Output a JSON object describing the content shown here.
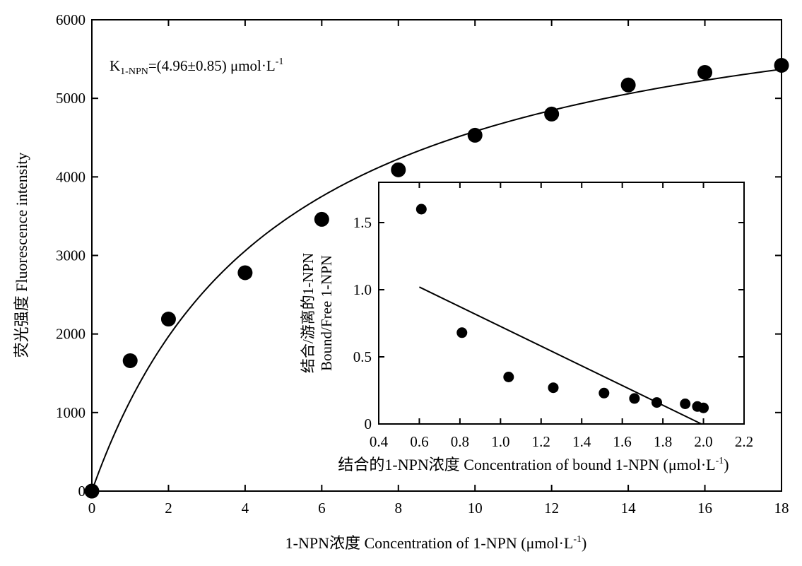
{
  "chart_data": [
    {
      "type": "scatter",
      "xlabel": "1-NPN浓度 Concentration of 1-NPN (μmol·L",
      "xlabel_sup": "-1",
      "xlabel_end": ")",
      "ylabel": "荧光强度 Fluorescence intensity",
      "xlim": [
        0,
        18
      ],
      "ylim": [
        0,
        6000
      ],
      "xticks": [
        0,
        2,
        4,
        6,
        8,
        10,
        12,
        14,
        16,
        18
      ],
      "yticks": [
        0,
        1000,
        2000,
        3000,
        4000,
        5000,
        6000
      ],
      "annotation": {
        "k_main": "K",
        "k_sub": "1-NPN",
        "k_value": "=(4.96±0.85) μmol·L",
        "k_sup": "-1"
      },
      "points": [
        {
          "x": 0,
          "y": 0
        },
        {
          "x": 1,
          "y": 1660
        },
        {
          "x": 2,
          "y": 2190
        },
        {
          "x": 4,
          "y": 2780
        },
        {
          "x": 6,
          "y": 3460
        },
        {
          "x": 8,
          "y": 4090
        },
        {
          "x": 10,
          "y": 4530
        },
        {
          "x": 12,
          "y": 4800
        },
        {
          "x": 14,
          "y": 5170
        },
        {
          "x": 16,
          "y": 5330
        },
        {
          "x": 18,
          "y": 5420
        }
      ],
      "fit_curve": {
        "model": "Bmax*x/(Kd+x)",
        "Bmax": 6850,
        "Kd": 4.96
      }
    },
    {
      "type": "scatter",
      "xlabel": "结合的1-NPN浓度 Concentration of bound 1-NPN (μmol·L",
      "xlabel_sup": "-1",
      "xlabel_end": ")",
      "ylabel_line1": "结合/游离的1-NPN",
      "ylabel_line2": "Bound/Free 1-NPN",
      "xlim": [
        0.4,
        2.2
      ],
      "ylim": [
        0,
        1.8
      ],
      "xticks": [
        "0.4",
        "0.6",
        "0.8",
        "1.0",
        "1.2",
        "1.4",
        "1.6",
        "1.8",
        "2.0",
        "2.2"
      ],
      "yticks": [
        "0",
        "0.5",
        "1.0",
        "1.5"
      ],
      "points": [
        {
          "x": 0.61,
          "y": 1.6
        },
        {
          "x": 0.81,
          "y": 0.68
        },
        {
          "x": 1.04,
          "y": 0.35
        },
        {
          "x": 1.26,
          "y": 0.27
        },
        {
          "x": 1.51,
          "y": 0.23
        },
        {
          "x": 1.66,
          "y": 0.19
        },
        {
          "x": 1.77,
          "y": 0.16
        },
        {
          "x": 1.91,
          "y": 0.15
        },
        {
          "x": 1.97,
          "y": 0.13
        },
        {
          "x": 2.0,
          "y": 0.12
        }
      ],
      "fit_line": [
        {
          "x": 0.6,
          "y": 1.02
        },
        {
          "x": 1.99,
          "y": 0
        }
      ]
    }
  ]
}
